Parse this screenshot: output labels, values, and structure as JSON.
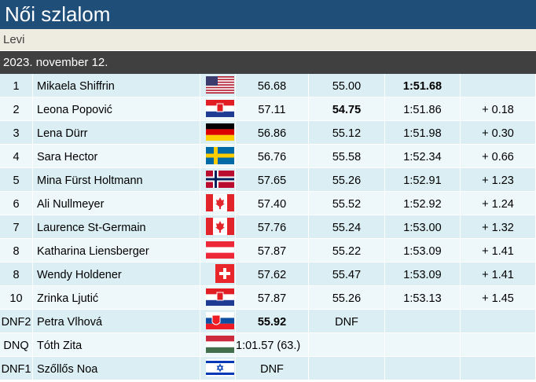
{
  "header": {
    "title": "Női szlalom",
    "location": "Levi",
    "date": "2023. november 12."
  },
  "table": {
    "rows": [
      {
        "rank": "1",
        "name": "Mikaela Shiffrin",
        "run1": "56.68",
        "run2": "55.00",
        "total": "1:51.68"
      },
      {
        "rank": "2",
        "name": "Leona Popović",
        "run1": "57.11",
        "run2": "54.75",
        "total": "1:51.86",
        "diff": "+ 0.18"
      },
      {
        "rank": "3",
        "name": "Lena Dürr",
        "run1": "56.86",
        "run2": "55.12",
        "total": "1:51.98",
        "diff": "+ 0.30"
      },
      {
        "rank": "4",
        "name": "Sara Hector",
        "run1": "56.76",
        "run2": "55.58",
        "total": "1:52.34",
        "diff": "+ 0.66"
      },
      {
        "rank": "5",
        "name": "Mina Fürst Holtmann",
        "run1": "57.65",
        "run2": "55.26",
        "total": "1:52.91",
        "diff": "+ 1.23"
      },
      {
        "rank": "6",
        "name": "Ali Nullmeyer",
        "run1": "57.40",
        "run2": "55.52",
        "total": "1:52.92",
        "diff": "+ 1.24"
      },
      {
        "rank": "7",
        "name": "Laurence St-Germain",
        "run1": "57.76",
        "run2": "55.24",
        "total": "1:53.00",
        "diff": "+ 1.32"
      },
      {
        "rank": "8",
        "name": "Katharina Liensberger",
        "run1": "57.87",
        "run2": "55.22",
        "total": "1:53.09",
        "diff": "+ 1.41"
      },
      {
        "rank": "8",
        "name": "Wendy Holdener",
        "run1": "57.62",
        "run2": "55.47",
        "total": "1:53.09",
        "diff": "+ 1.41"
      },
      {
        "rank": "10",
        "name": "Zrinka Ljutić",
        "run1": "57.87",
        "run2": "55.26",
        "total": "1:53.13",
        "diff": "+ 1.45"
      },
      {
        "rank": "DNF2",
        "name": "Petra Vlhová",
        "run1": "55.92",
        "run2": "DNF"
      },
      {
        "rank": "DNQ",
        "name": "Tóth Zita",
        "run1": "1:01.57 (63.)"
      },
      {
        "rank": "DNF1",
        "name": "Szőllős Noa",
        "run1": "DNF"
      }
    ]
  }
}
